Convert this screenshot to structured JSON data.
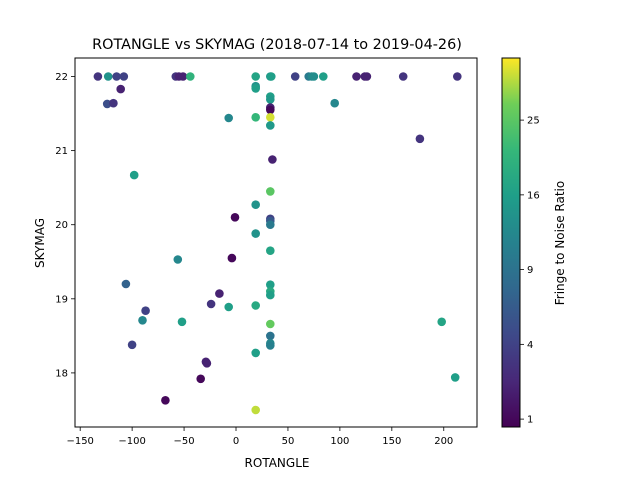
{
  "chart_data": {
    "type": "scatter",
    "title": "ROTANGLE vs SKYMAG (2018-07-14 to 2019-04-26)",
    "xlabel": "ROTANGLE",
    "ylabel": "SKYMAG",
    "xlim": [
      -155,
      232
    ],
    "ylim": [
      17.27,
      22.25
    ],
    "xticks": [
      -150,
      -100,
      -50,
      0,
      50,
      100,
      150,
      200
    ],
    "yticks": [
      18,
      19,
      20,
      21,
      22
    ],
    "grid": false,
    "colormap": "viridis",
    "colorbar": {
      "label": "Fringe to Noise Ratio",
      "scale": "sqrt",
      "range": [
        0.8,
        34
      ],
      "ticks": [
        1,
        4,
        9,
        16,
        25
      ]
    },
    "marker_color_min": "#440154",
    "marker_color_max": "#fde725",
    "points": [
      {
        "x": -133,
        "y": 22.0,
        "c": 3
      },
      {
        "x": -123,
        "y": 22.0,
        "c": 14
      },
      {
        "x": -115,
        "y": 22.0,
        "c": 4
      },
      {
        "x": -108,
        "y": 22.0,
        "c": 4
      },
      {
        "x": -58,
        "y": 22.0,
        "c": 3
      },
      {
        "x": -55,
        "y": 22.0,
        "c": 2
      },
      {
        "x": -51,
        "y": 22.0,
        "c": 2
      },
      {
        "x": -44,
        "y": 22.0,
        "c": 20
      },
      {
        "x": 19,
        "y": 22.0,
        "c": 17
      },
      {
        "x": 33,
        "y": 22.0,
        "c": 15
      },
      {
        "x": 34,
        "y": 22.0,
        "c": 16
      },
      {
        "x": 57,
        "y": 22.0,
        "c": 4
      },
      {
        "x": 70,
        "y": 22.0,
        "c": 10
      },
      {
        "x": 73,
        "y": 22.0,
        "c": 12
      },
      {
        "x": 75,
        "y": 22.0,
        "c": 13
      },
      {
        "x": 84,
        "y": 22.0,
        "c": 16
      },
      {
        "x": 116,
        "y": 22.0,
        "c": 2
      },
      {
        "x": 124,
        "y": 22.0,
        "c": 2
      },
      {
        "x": 126,
        "y": 22.0,
        "c": 2
      },
      {
        "x": 161,
        "y": 22.0,
        "c": 3
      },
      {
        "x": 213,
        "y": 22.0,
        "c": 3
      },
      {
        "x": 19,
        "y": 21.87,
        "c": 14
      },
      {
        "x": 19,
        "y": 21.84,
        "c": 16
      },
      {
        "x": -111,
        "y": 21.83,
        "c": 2
      },
      {
        "x": 33,
        "y": 21.73,
        "c": 16
      },
      {
        "x": 33,
        "y": 21.69,
        "c": 15
      },
      {
        "x": -124,
        "y": 21.63,
        "c": 5
      },
      {
        "x": -118,
        "y": 21.64,
        "c": 3
      },
      {
        "x": 95,
        "y": 21.64,
        "c": 12
      },
      {
        "x": 33,
        "y": 21.58,
        "c": 2
      },
      {
        "x": 33,
        "y": 21.55,
        "c": 1
      },
      {
        "x": -7,
        "y": 21.44,
        "c": 12
      },
      {
        "x": 19,
        "y": 21.45,
        "c": 21
      },
      {
        "x": 33,
        "y": 21.45,
        "c": 32
      },
      {
        "x": 33,
        "y": 21.34,
        "c": 15
      },
      {
        "x": 177,
        "y": 21.16,
        "c": 3
      },
      {
        "x": 35,
        "y": 20.88,
        "c": 2
      },
      {
        "x": -98,
        "y": 20.67,
        "c": 16
      },
      {
        "x": 33,
        "y": 20.45,
        "c": 25
      },
      {
        "x": 19,
        "y": 20.27,
        "c": 14
      },
      {
        "x": -1,
        "y": 20.1,
        "c": 1
      },
      {
        "x": 33,
        "y": 20.08,
        "c": 4
      },
      {
        "x": 33,
        "y": 20.05,
        "c": 6
      },
      {
        "x": 33,
        "y": 20.0,
        "c": 10
      },
      {
        "x": 19,
        "y": 19.88,
        "c": 14
      },
      {
        "x": 33,
        "y": 19.65,
        "c": 17
      },
      {
        "x": -4,
        "y": 19.55,
        "c": 1
      },
      {
        "x": -56,
        "y": 19.53,
        "c": 12
      },
      {
        "x": 33,
        "y": 19.19,
        "c": 16
      },
      {
        "x": -106,
        "y": 19.2,
        "c": 7
      },
      {
        "x": 33,
        "y": 19.1,
        "c": 18
      },
      {
        "x": 33,
        "y": 19.05,
        "c": 16
      },
      {
        "x": -16,
        "y": 19.07,
        "c": 2
      },
      {
        "x": -24,
        "y": 18.93,
        "c": 3
      },
      {
        "x": 19,
        "y": 18.91,
        "c": 18
      },
      {
        "x": -7,
        "y": 18.89,
        "c": 16
      },
      {
        "x": -87,
        "y": 18.84,
        "c": 4
      },
      {
        "x": -90,
        "y": 18.71,
        "c": 12
      },
      {
        "x": -52,
        "y": 18.69,
        "c": 16
      },
      {
        "x": 198,
        "y": 18.69,
        "c": 17
      },
      {
        "x": 33,
        "y": 18.66,
        "c": 26
      },
      {
        "x": 33,
        "y": 18.5,
        "c": 9
      },
      {
        "x": 33,
        "y": 18.4,
        "c": 12
      },
      {
        "x": 33,
        "y": 18.37,
        "c": 11
      },
      {
        "x": -100,
        "y": 18.38,
        "c": 4
      },
      {
        "x": 19,
        "y": 18.27,
        "c": 16
      },
      {
        "x": -29,
        "y": 18.15,
        "c": 2
      },
      {
        "x": -28,
        "y": 18.13,
        "c": 2
      },
      {
        "x": 211,
        "y": 17.94,
        "c": 16
      },
      {
        "x": -34,
        "y": 17.92,
        "c": 1
      },
      {
        "x": -68,
        "y": 17.63,
        "c": 1
      },
      {
        "x": 19,
        "y": 17.5,
        "c": 31
      }
    ]
  }
}
